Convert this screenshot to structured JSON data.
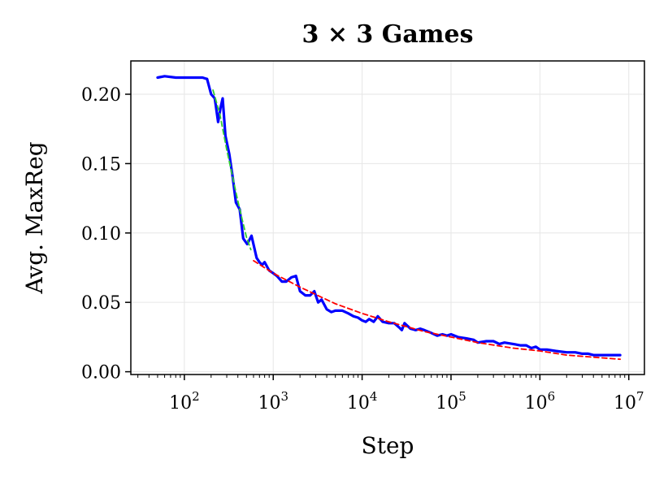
{
  "chart_data": {
    "type": "line",
    "title": "3 × 3 Games",
    "xlabel": "Step",
    "ylabel": "Avg. MaxReg",
    "xscale": "log",
    "xlim": [
      25,
      15000000
    ],
    "ylim": [
      -0.002,
      0.224
    ],
    "grid": true,
    "legend": "none",
    "x_ticks": [
      {
        "value": 100,
        "base": "10",
        "exp": "2"
      },
      {
        "value": 1000,
        "base": "10",
        "exp": "3"
      },
      {
        "value": 10000,
        "base": "10",
        "exp": "4"
      },
      {
        "value": 100000,
        "base": "10",
        "exp": "5"
      },
      {
        "value": 1000000,
        "base": "10",
        "exp": "6"
      },
      {
        "value": 10000000,
        "base": "10",
        "exp": "7"
      }
    ],
    "y_ticks": [
      {
        "value": 0.0,
        "label": "0.00"
      },
      {
        "value": 0.05,
        "label": "0.05"
      },
      {
        "value": 0.1,
        "label": "0.10"
      },
      {
        "value": 0.15,
        "label": "0.15"
      },
      {
        "value": 0.2,
        "label": "0.20"
      }
    ],
    "series": [
      {
        "color": "#0000ff",
        "style": "solid",
        "points": [
          [
            50,
            0.212
          ],
          [
            60,
            0.213
          ],
          [
            80,
            0.212
          ],
          [
            100,
            0.212
          ],
          [
            120,
            0.212
          ],
          [
            160,
            0.212
          ],
          [
            180,
            0.211
          ],
          [
            200,
            0.2
          ],
          [
            220,
            0.197
          ],
          [
            240,
            0.18
          ],
          [
            255,
            0.19
          ],
          [
            270,
            0.197
          ],
          [
            290,
            0.17
          ],
          [
            320,
            0.157
          ],
          [
            350,
            0.14
          ],
          [
            380,
            0.122
          ],
          [
            420,
            0.117
          ],
          [
            460,
            0.096
          ],
          [
            510,
            0.092
          ],
          [
            570,
            0.098
          ],
          [
            650,
            0.082
          ],
          [
            700,
            0.079
          ],
          [
            750,
            0.077
          ],
          [
            800,
            0.079
          ],
          [
            900,
            0.073
          ],
          [
            1000,
            0.071
          ],
          [
            1100,
            0.069
          ],
          [
            1250,
            0.065
          ],
          [
            1400,
            0.065
          ],
          [
            1600,
            0.068
          ],
          [
            1800,
            0.069
          ],
          [
            2000,
            0.058
          ],
          [
            2300,
            0.055
          ],
          [
            2600,
            0.055
          ],
          [
            2900,
            0.058
          ],
          [
            3200,
            0.05
          ],
          [
            3500,
            0.052
          ],
          [
            4000,
            0.045
          ],
          [
            4500,
            0.043
          ],
          [
            5000,
            0.044
          ],
          [
            6000,
            0.044
          ],
          [
            7000,
            0.042
          ],
          [
            8000,
            0.04
          ],
          [
            9000,
            0.039
          ],
          [
            10000,
            0.037
          ],
          [
            11000,
            0.036
          ],
          [
            12000,
            0.038
          ],
          [
            13500,
            0.036
          ],
          [
            15000,
            0.04
          ],
          [
            17000,
            0.036
          ],
          [
            20000,
            0.035
          ],
          [
            23000,
            0.035
          ],
          [
            26000,
            0.032
          ],
          [
            28000,
            0.03
          ],
          [
            30000,
            0.035
          ],
          [
            35000,
            0.031
          ],
          [
            40000,
            0.03
          ],
          [
            45000,
            0.031
          ],
          [
            50000,
            0.03
          ],
          [
            60000,
            0.028
          ],
          [
            70000,
            0.026
          ],
          [
            80000,
            0.027
          ],
          [
            90000,
            0.026
          ],
          [
            100000,
            0.027
          ],
          [
            120000,
            0.025
          ],
          [
            150000,
            0.024
          ],
          [
            180000,
            0.023
          ],
          [
            200000,
            0.021
          ],
          [
            250000,
            0.022
          ],
          [
            300000,
            0.022
          ],
          [
            350000,
            0.02
          ],
          [
            400000,
            0.021
          ],
          [
            500000,
            0.02
          ],
          [
            600000,
            0.019
          ],
          [
            700000,
            0.019
          ],
          [
            800000,
            0.017
          ],
          [
            900000,
            0.018
          ],
          [
            1000000,
            0.016
          ],
          [
            1200000,
            0.016
          ],
          [
            1500000,
            0.015
          ],
          [
            2000000,
            0.014
          ],
          [
            2500000,
            0.014
          ],
          [
            3000000,
            0.013
          ],
          [
            3500000,
            0.013
          ],
          [
            4000000,
            0.012
          ],
          [
            5000000,
            0.012
          ],
          [
            6000000,
            0.012
          ],
          [
            7000000,
            0.012
          ],
          [
            8000000,
            0.012
          ]
        ]
      },
      {
        "color": "#33cc33",
        "style": "dashed",
        "points": [
          [
            210,
            0.203
          ],
          [
            250,
            0.186
          ],
          [
            300,
            0.16
          ],
          [
            350,
            0.14
          ],
          [
            400,
            0.123
          ],
          [
            450,
            0.109
          ],
          [
            500,
            0.097
          ],
          [
            560,
            0.088
          ]
        ]
      },
      {
        "color": "#ff0000",
        "style": "dashed",
        "points": [
          [
            600,
            0.08
          ],
          [
            1000,
            0.071
          ],
          [
            2000,
            0.061
          ],
          [
            5000,
            0.049
          ],
          [
            10000,
            0.042
          ],
          [
            20000,
            0.036
          ],
          [
            50000,
            0.029
          ],
          [
            100000,
            0.025
          ],
          [
            200000,
            0.021
          ],
          [
            500000,
            0.017
          ],
          [
            1000000,
            0.015
          ],
          [
            2000000,
            0.012
          ],
          [
            5000000,
            0.01
          ],
          [
            8000000,
            0.009
          ]
        ]
      }
    ]
  }
}
